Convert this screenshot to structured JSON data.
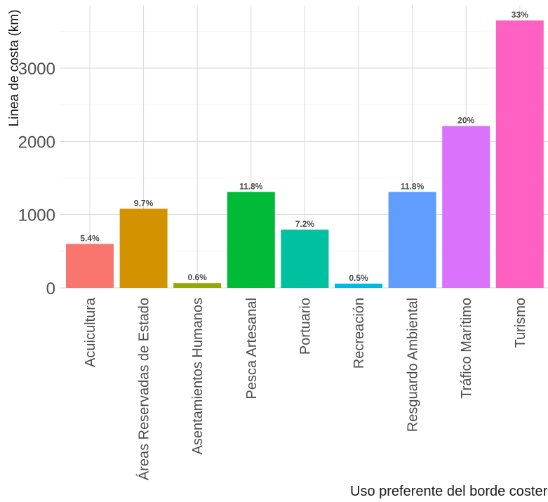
{
  "chart_data": {
    "type": "bar",
    "title": "",
    "xlabel": "Uso preferente del borde costero",
    "ylabel": "Linea de costa (km)",
    "categories": [
      "Acuicultura",
      "Áreas Reservadas de Estado",
      "Asentamientos Humanos",
      "Pesca Artesanal",
      "Portuario",
      "Recreación",
      "Resguardo Ambiental",
      "Tráfico Marítimo",
      "Turismo"
    ],
    "values": [
      600,
      1080,
      65,
      1310,
      795,
      58,
      1310,
      2210,
      3650
    ],
    "data_labels": [
      "5.4%",
      "9.7%",
      "0.6%",
      "11.8%",
      "7.2%",
      "0.5%",
      "11.8%",
      "20%",
      "33%"
    ],
    "colors": [
      "#F8766D",
      "#D39200",
      "#93AA00",
      "#00BA38",
      "#00C19F",
      "#00B9E3",
      "#619CFF",
      "#DB72FB",
      "#FF61C3"
    ],
    "yticks": [
      "0",
      "1000",
      "2000",
      "3000"
    ],
    "ylim": [
      0,
      3700
    ],
    "grid": true,
    "legend": "none"
  }
}
